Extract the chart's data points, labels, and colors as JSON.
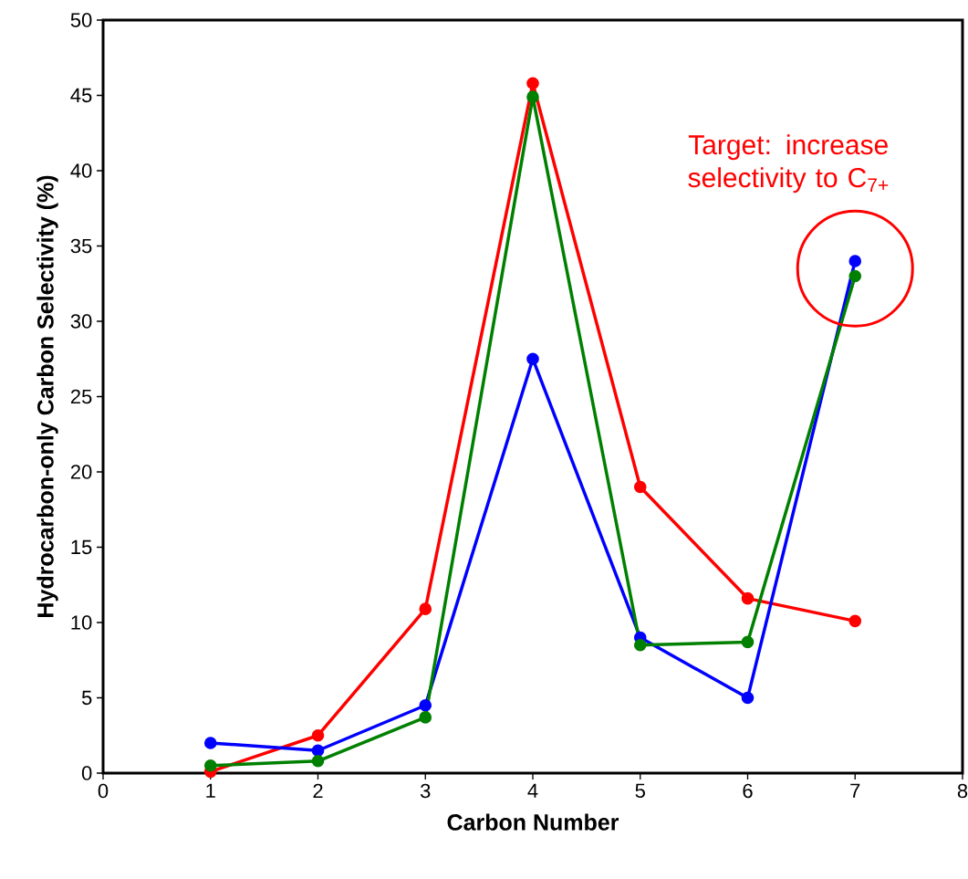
{
  "chart_data": {
    "type": "line",
    "xlabel": "Carbon Number",
    "ylabel": "Hydrocarbon-only Carbon Selectivity (%)",
    "x": [
      1,
      2,
      3,
      4,
      5,
      6,
      7
    ],
    "series": [
      {
        "color": "#ff0000",
        "values": [
          0.1,
          2.5,
          10.9,
          45.8,
          19.0,
          11.6,
          10.1
        ]
      },
      {
        "color": "#0000ff",
        "values": [
          2.0,
          1.5,
          4.5,
          27.5,
          9.0,
          5.0,
          34.0
        ]
      },
      {
        "color": "#008000",
        "values": [
          0.5,
          0.8,
          3.7,
          44.9,
          8.5,
          8.7,
          33.0
        ]
      }
    ],
    "xlim": [
      0,
      8
    ],
    "xticks": [
      0,
      1,
      2,
      3,
      4,
      5,
      6,
      7,
      8
    ],
    "ylim": [
      0,
      50
    ],
    "yticks": [
      0,
      5,
      10,
      15,
      20,
      25,
      30,
      35,
      40,
      45,
      50
    ],
    "annotations": [
      {
        "text": "Target: increase selectivity to C$_{7+}$",
        "x": 7,
        "y": 33.5
      }
    ],
    "marker": "circle",
    "line_style": "solid",
    "grid": false,
    "legend": false
  }
}
